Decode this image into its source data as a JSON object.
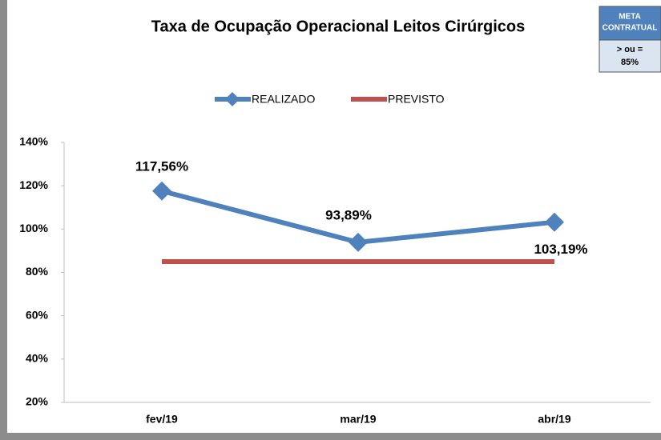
{
  "chart_data": {
    "type": "line",
    "title": "Taxa de Ocupação Operacional Leitos Cirúrgicos",
    "categories": [
      "fev/19",
      "mar/19",
      "abr/19"
    ],
    "series": [
      {
        "name": "REALIZADO",
        "color": "#4f81bd",
        "values": [
          117.56,
          93.89,
          103.19
        ],
        "value_labels": [
          "117,56%",
          "93,89%",
          "103,19%"
        ],
        "marker": "diamond"
      },
      {
        "name": "PREVISTO",
        "color": "#c0504d",
        "values": [
          85,
          85,
          85
        ]
      }
    ],
    "ylim": [
      20,
      140
    ],
    "yticks": [
      {
        "value": 20,
        "label": "20%"
      },
      {
        "value": 40,
        "label": "40%"
      },
      {
        "value": 60,
        "label": "60%"
      },
      {
        "value": 80,
        "label": "80%"
      },
      {
        "value": 100,
        "label": "100%"
      },
      {
        "value": 120,
        "label": "120%"
      },
      {
        "value": 140,
        "label": "140%"
      }
    ],
    "grid": false,
    "legend": "top",
    "annotation": {
      "header": [
        "META",
        "CONTRATUAL"
      ],
      "body": [
        "> ou =",
        "85%"
      ]
    }
  }
}
